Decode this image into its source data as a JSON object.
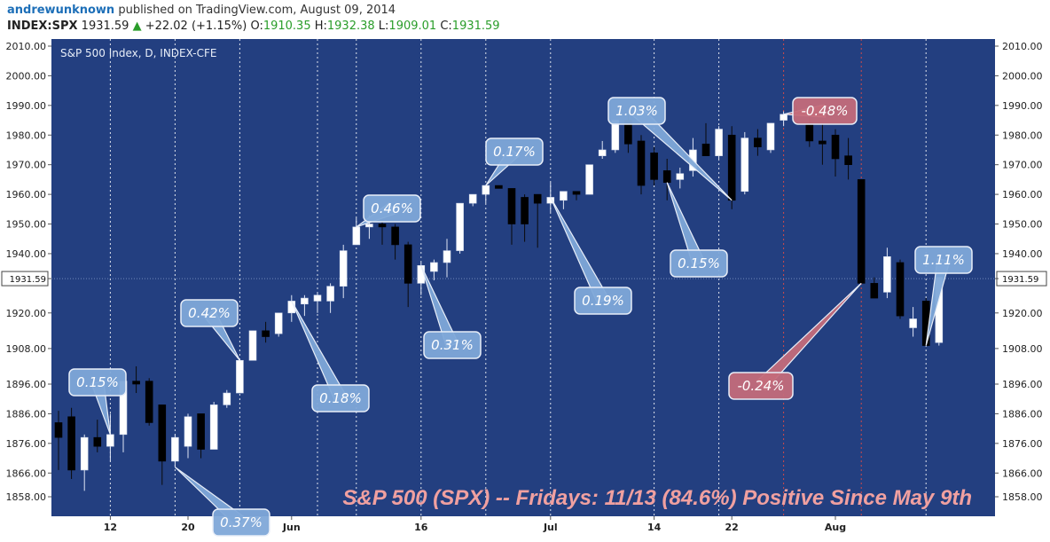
{
  "header": {
    "author": "andrewunknown",
    "published": "published on TradingView.com, August 09, 2014",
    "symbol": "INDEX:SPX",
    "last": "1931.59",
    "change": "+22.02 (+1.15%)",
    "o_label": "O:",
    "o_val": "1910.35",
    "h_label": "H:",
    "h_val": "1932.38",
    "l_label": "L:",
    "l_val": "1909.01",
    "c_label": "C:",
    "c_val": "1931.59"
  },
  "colors": {
    "plot_bg": "#233f80",
    "up_candle": "#ffffff",
    "down_candle": "#000000",
    "friday_line": "#ffffff",
    "red_line": "#d04a4a",
    "callout_blue": "#7fa8d8",
    "callout_red": "#c46c7a"
  },
  "chart_data": {
    "type": "candlestick",
    "title": "S&P 500 Index, D, INDEX-CFE",
    "banner": "S&P 500 (SPX) -- Fridays: 11/13 (84.6%) Positive Since May 9th",
    "current_price_label": "1931.59",
    "y_ticks": [
      "2010.00",
      "2000.00",
      "1990.00",
      "1980.00",
      "1970.00",
      "1960.00",
      "1950.00",
      "1940.00",
      "1931.59",
      "1920.00",
      "1908.00",
      "1896.00",
      "1886.00",
      "1876.00",
      "1866.00",
      "1858.00"
    ],
    "x_ticks": [
      {
        "label": "12",
        "index": 4
      },
      {
        "label": "20",
        "index": 10
      },
      {
        "label": "Jun",
        "index": 18
      },
      {
        "label": "16",
        "index": 28
      },
      {
        "label": "Jul",
        "index": 38
      },
      {
        "label": "14",
        "index": 46
      },
      {
        "label": "22",
        "index": 52
      },
      {
        "label": "Aug",
        "index": 60
      }
    ],
    "candles": [
      {
        "o": 1883,
        "h": 1887,
        "l": 1867,
        "c": 1878
      },
      {
        "o": 1885,
        "h": 1888,
        "l": 1864,
        "c": 1867
      },
      {
        "o": 1867,
        "h": 1879,
        "l": 1860,
        "c": 1878
      },
      {
        "o": 1878,
        "h": 1884,
        "l": 1873,
        "c": 1875
      },
      {
        "o": 1875,
        "h": 1886,
        "l": 1870,
        "c": 1879
      },
      {
        "o": 1879,
        "h": 1897,
        "l": 1873,
        "c": 1897
      },
      {
        "o": 1897,
        "h": 1902,
        "l": 1893,
        "c": 1896
      },
      {
        "o": 1897,
        "h": 1898,
        "l": 1882,
        "c": 1883
      },
      {
        "o": 1889,
        "h": 1889,
        "l": 1862,
        "c": 1870
      },
      {
        "o": 1870,
        "h": 1879,
        "l": 1868,
        "c": 1878
      },
      {
        "o": 1875,
        "h": 1886,
        "l": 1871,
        "c": 1885
      },
      {
        "o": 1886,
        "h": 1886,
        "l": 1871,
        "c": 1874
      },
      {
        "o": 1874,
        "h": 1890,
        "l": 1874,
        "c": 1889
      },
      {
        "o": 1889,
        "h": 1894,
        "l": 1888,
        "c": 1893
      },
      {
        "o": 1893,
        "h": 1904,
        "l": 1893,
        "c": 1904
      },
      {
        "o": 1904,
        "h": 1914,
        "l": 1904,
        "c": 1914
      },
      {
        "o": 1914,
        "h": 1917,
        "l": 1910,
        "c": 1912
      },
      {
        "o": 1913,
        "h": 1920,
        "l": 1912,
        "c": 1920
      },
      {
        "o": 1920,
        "h": 1926,
        "l": 1917,
        "c": 1924
      },
      {
        "o": 1923,
        "h": 1926,
        "l": 1919,
        "c": 1925
      },
      {
        "o": 1924,
        "h": 1927,
        "l": 1920,
        "c": 1926
      },
      {
        "o": 1924,
        "h": 1930,
        "l": 1920,
        "c": 1929
      },
      {
        "o": 1929,
        "h": 1943,
        "l": 1925,
        "c": 1941
      },
      {
        "o": 1943,
        "h": 1952,
        "l": 1943,
        "c": 1949
      },
      {
        "o": 1949,
        "h": 1953,
        "l": 1945,
        "c": 1950
      },
      {
        "o": 1950,
        "h": 1951,
        "l": 1943,
        "c": 1949
      },
      {
        "o": 1949,
        "h": 1950,
        "l": 1938,
        "c": 1943
      },
      {
        "o": 1943,
        "h": 1944,
        "l": 1922,
        "c": 1930
      },
      {
        "o": 1930,
        "h": 1937,
        "l": 1926,
        "c": 1936
      },
      {
        "o": 1934,
        "h": 1938,
        "l": 1931,
        "c": 1937
      },
      {
        "o": 1937,
        "h": 1945,
        "l": 1932,
        "c": 1941
      },
      {
        "o": 1941,
        "h": 1957,
        "l": 1940,
        "c": 1957
      },
      {
        "o": 1957,
        "h": 1960,
        "l": 1956,
        "c": 1960
      },
      {
        "o": 1960,
        "h": 1963,
        "l": 1957,
        "c": 1963
      },
      {
        "o": 1963,
        "h": 1963,
        "l": 1962,
        "c": 1962
      },
      {
        "o": 1962,
        "h": 1962,
        "l": 1943,
        "c": 1950
      },
      {
        "o": 1959,
        "h": 1960,
        "l": 1944,
        "c": 1950
      },
      {
        "o": 1960,
        "h": 1960,
        "l": 1942,
        "c": 1957
      },
      {
        "o": 1957,
        "h": 1964,
        "l": 1954,
        "c": 1959
      },
      {
        "o": 1958,
        "h": 1961,
        "l": 1955,
        "c": 1961
      },
      {
        "o": 1961,
        "h": 1961,
        "l": 1958,
        "c": 1960
      },
      {
        "o": 1960,
        "h": 1969,
        "l": 1960,
        "c": 1970
      },
      {
        "o": 1973,
        "h": 1978,
        "l": 1972,
        "c": 1975
      },
      {
        "o": 1975,
        "h": 1985,
        "l": 1974,
        "c": 1985
      },
      {
        "o": 1985,
        "h": 1987,
        "l": 1974,
        "c": 1977
      },
      {
        "o": 1978,
        "h": 1980,
        "l": 1960,
        "c": 1963
      },
      {
        "o": 1974,
        "h": 1976,
        "l": 1963,
        "c": 1965
      },
      {
        "o": 1968,
        "h": 1972,
        "l": 1958,
        "c": 1964
      },
      {
        "o": 1965,
        "h": 1969,
        "l": 1962,
        "c": 1967
      },
      {
        "o": 1968,
        "h": 1979,
        "l": 1966,
        "c": 1975
      },
      {
        "o": 1977,
        "h": 1984,
        "l": 1973,
        "c": 1973
      },
      {
        "o": 1973,
        "h": 1983,
        "l": 1972,
        "c": 1982
      },
      {
        "o": 1980,
        "h": 1983,
        "l": 1955,
        "c": 1958
      },
      {
        "o": 1961,
        "h": 1981,
        "l": 1960,
        "c": 1979
      },
      {
        "o": 1979,
        "h": 1982,
        "l": 1973,
        "c": 1976
      },
      {
        "o": 1975,
        "h": 1984,
        "l": 1974,
        "c": 1984
      },
      {
        "o": 1985,
        "h": 1988,
        "l": 1983,
        "c": 1987
      },
      {
        "o": 1988,
        "h": 1990,
        "l": 1987,
        "c": 1987
      },
      {
        "o": 1984,
        "h": 1986,
        "l": 1976,
        "c": 1978
      },
      {
        "o": 1978,
        "h": 1984,
        "l": 1970,
        "c": 1977
      },
      {
        "o": 1980,
        "h": 1982,
        "l": 1966,
        "c": 1972
      },
      {
        "o": 1973,
        "h": 1979,
        "l": 1965,
        "c": 1970
      },
      {
        "o": 1965,
        "h": 1965,
        "l": 1930,
        "c": 1930
      },
      {
        "o": 1930,
        "h": 1932,
        "l": 1925,
        "c": 1925
      },
      {
        "o": 1927,
        "h": 1942,
        "l": 1925,
        "c": 1939
      },
      {
        "o": 1937,
        "h": 1938,
        "l": 1918,
        "c": 1919
      },
      {
        "o": 1915,
        "h": 1922,
        "l": 1912,
        "c": 1918
      },
      {
        "o": 1924,
        "h": 1925,
        "l": 1909,
        "c": 1909
      },
      {
        "o": 1910,
        "h": 1932,
        "l": 1909,
        "c": 1932
      }
    ],
    "friday_indices": [
      4,
      9,
      14,
      20,
      23,
      28,
      33,
      38,
      46,
      51,
      56,
      62,
      67
    ],
    "red_line_indices": [
      56,
      62
    ],
    "annotations": [
      {
        "text": "0.15%",
        "candle": 4,
        "color": "blue"
      },
      {
        "text": "0.37%",
        "candle": 9,
        "color": "blue"
      },
      {
        "text": "0.42%",
        "candle": 14,
        "color": "blue"
      },
      {
        "text": "0.18%",
        "candle": 18,
        "color": "blue"
      },
      {
        "text": "0.46%",
        "candle": 23,
        "color": "blue"
      },
      {
        "text": "0.31%",
        "candle": 28,
        "color": "blue"
      },
      {
        "text": "0.17%",
        "candle": 33,
        "color": "blue"
      },
      {
        "text": "0.19%",
        "candle": 38,
        "color": "blue"
      },
      {
        "text": "1.03%",
        "candle": 52,
        "color": "blue"
      },
      {
        "text": "0.15%",
        "candle": 47,
        "color": "blue"
      },
      {
        "text": "-0.48%",
        "candle": 56,
        "color": "red"
      },
      {
        "text": "-0.24%",
        "candle": 62,
        "color": "red"
      },
      {
        "text": "1.11%",
        "candle": 67,
        "color": "blue"
      }
    ]
  }
}
